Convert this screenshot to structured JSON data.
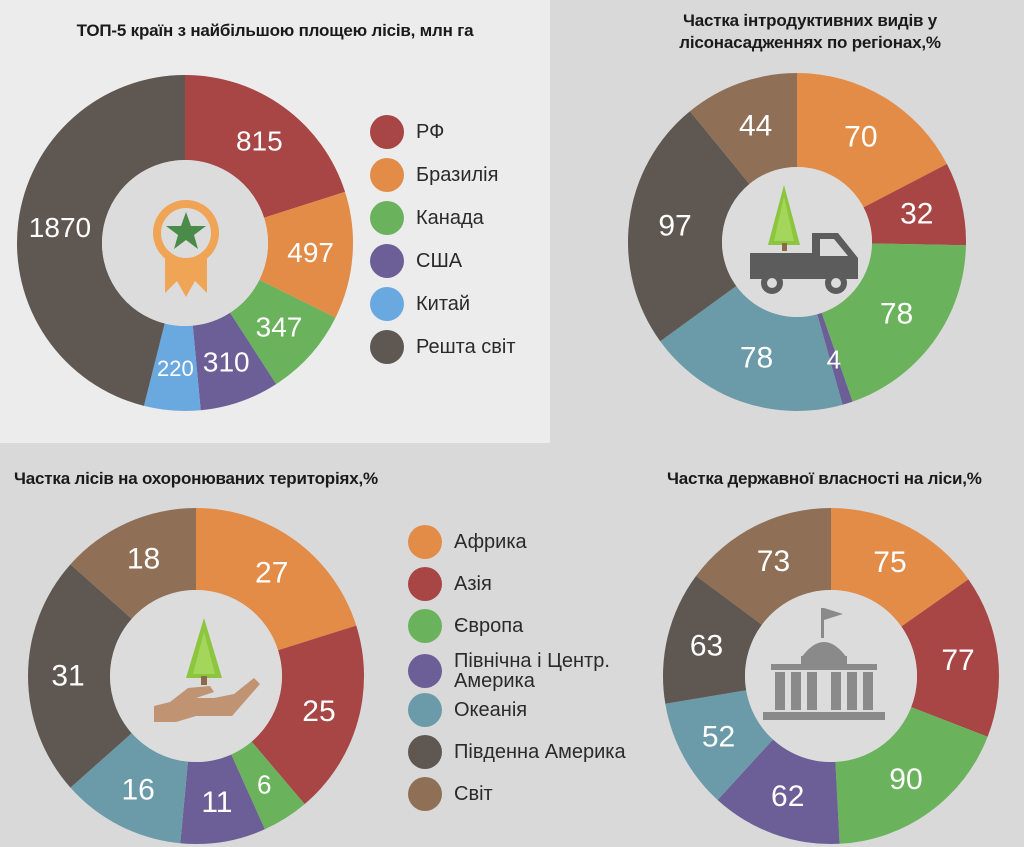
{
  "colors": {
    "red": "#a84545",
    "orange": "#e28c48",
    "green": "#6ab35c",
    "purple": "#6c5e96",
    "lightblue": "#6aa9e0",
    "teal": "#6b9aa9",
    "darkgray": "#5f5752",
    "brown": "#8f7056",
    "center": "#dcdcdc",
    "badge_orange": "#efa456",
    "badge_star": "#4a8b4a",
    "tree_green": "#8cc63f",
    "truck_gray": "#5c5c5c",
    "hand_tan": "#c09373",
    "building_gray": "#8a8a8a"
  },
  "chart_data": [
    {
      "type": "pie",
      "title": "ТОП-5 країн з найбільшою площею лісів, млн га",
      "icon": "award-badge-icon",
      "slices": [
        {
          "label": "РФ",
          "value": 815,
          "color": "#a84545"
        },
        {
          "label": "Бразилія",
          "value": 497,
          "color": "#e28c48"
        },
        {
          "label": "Канада",
          "value": 347,
          "color": "#6ab35c"
        },
        {
          "label": "США",
          "value": 310,
          "color": "#6c5e96"
        },
        {
          "label": "Китай",
          "value": 220,
          "color": "#6aa9e0"
        },
        {
          "label": "Решта світ",
          "value": 1870,
          "color": "#5f5752"
        }
      ],
      "legend": [
        "РФ",
        "Бразилія",
        "Канада",
        "США",
        "Китай",
        "Решта світ"
      ]
    },
    {
      "type": "pie",
      "title": "Частка інтродуктивних видів у лісонасадженнях по регіонах,%",
      "icon": "truck-with-tree-icon",
      "slices": [
        {
          "label": "Африка",
          "value": 70,
          "color": "#e28c48"
        },
        {
          "label": "Азія",
          "value": 32,
          "color": "#a84545"
        },
        {
          "label": "Європа",
          "value": 78,
          "color": "#6ab35c"
        },
        {
          "label": "Північна і Центр. Америка",
          "value": 4,
          "color": "#6c5e96"
        },
        {
          "label": "Океанія",
          "value": 78,
          "color": "#6b9aa9"
        },
        {
          "label": "Південна Америка",
          "value": 97,
          "color": "#5f5752"
        },
        {
          "label": "Світ",
          "value": 44,
          "color": "#8f7056"
        }
      ]
    },
    {
      "type": "pie",
      "title": "Частка лісів на охоронюваних територіях,%",
      "icon": "hand-with-tree-icon",
      "slices": [
        {
          "label": "Африка",
          "value": 27,
          "color": "#e28c48"
        },
        {
          "label": "Азія",
          "value": 25,
          "color": "#a84545"
        },
        {
          "label": "Європа",
          "value": 6,
          "color": "#6ab35c"
        },
        {
          "label": "Північна і Центр. Америка",
          "value": 11,
          "color": "#6c5e96"
        },
        {
          "label": "Океанія",
          "value": 16,
          "color": "#6b9aa9"
        },
        {
          "label": "Південна Америка",
          "value": 31,
          "color": "#5f5752"
        },
        {
          "label": "Світ",
          "value": 18,
          "color": "#8f7056"
        }
      ],
      "legend": [
        "Африка",
        "Азія",
        "Європа",
        "Північна і Центр.\nАмерика",
        "Океанія",
        "Південна Америка",
        "Світ"
      ]
    },
    {
      "type": "pie",
      "title": "Частка державної власності на ліси,%",
      "icon": "government-building-icon",
      "slices": [
        {
          "label": "Африка",
          "value": 75,
          "color": "#e28c48"
        },
        {
          "label": "Азія",
          "value": 77,
          "color": "#a84545"
        },
        {
          "label": "Європа",
          "value": 90,
          "color": "#6ab35c"
        },
        {
          "label": "Північна і Центр. Америка",
          "value": 62,
          "color": "#6c5e96"
        },
        {
          "label": "Океанія",
          "value": 52,
          "color": "#6b9aa9"
        },
        {
          "label": "Південна Америка",
          "value": 63,
          "color": "#5f5752"
        },
        {
          "label": "Світ",
          "value": 73,
          "color": "#8f7056"
        }
      ]
    }
  ]
}
